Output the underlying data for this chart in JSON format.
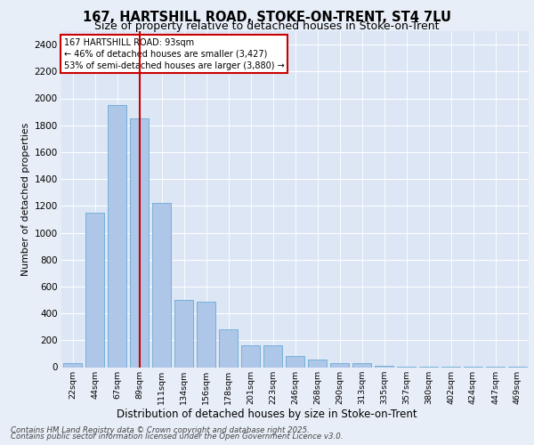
{
  "title1": "167, HARTSHILL ROAD, STOKE-ON-TRENT, ST4 7LU",
  "title2": "Size of property relative to detached houses in Stoke-on-Trent",
  "xlabel": "Distribution of detached houses by size in Stoke-on-Trent",
  "ylabel": "Number of detached properties",
  "categories": [
    "22sqm",
    "44sqm",
    "67sqm",
    "89sqm",
    "111sqm",
    "134sqm",
    "156sqm",
    "178sqm",
    "201sqm",
    "223sqm",
    "246sqm",
    "268sqm",
    "290sqm",
    "313sqm",
    "335sqm",
    "357sqm",
    "380sqm",
    "402sqm",
    "424sqm",
    "447sqm",
    "469sqm"
  ],
  "values": [
    30,
    1150,
    1950,
    1850,
    1220,
    500,
    490,
    280,
    160,
    160,
    80,
    55,
    30,
    28,
    8,
    5,
    4,
    3,
    3,
    3,
    3
  ],
  "bar_color": "#aec6e8",
  "bar_edge_color": "#6aaad4",
  "vline_x_index": 3,
  "vline_color": "#cc0000",
  "annotation_title": "167 HARTSHILL ROAD: 93sqm",
  "annotation_line1": "← 46% of detached houses are smaller (3,427)",
  "annotation_line2": "53% of semi-detached houses are larger (3,880) →",
  "annotation_box_color": "#ffffff",
  "annotation_box_edge_color": "#cc0000",
  "ylim": [
    0,
    2500
  ],
  "yticks": [
    0,
    200,
    400,
    600,
    800,
    1000,
    1200,
    1400,
    1600,
    1800,
    2000,
    2200,
    2400
  ],
  "bg_color": "#e8eef7",
  "plot_bg_color": "#dce6f5",
  "grid_color": "#ffffff",
  "footer1": "Contains HM Land Registry data © Crown copyright and database right 2025.",
  "footer2": "Contains public sector information licensed under the Open Government Licence v3.0."
}
